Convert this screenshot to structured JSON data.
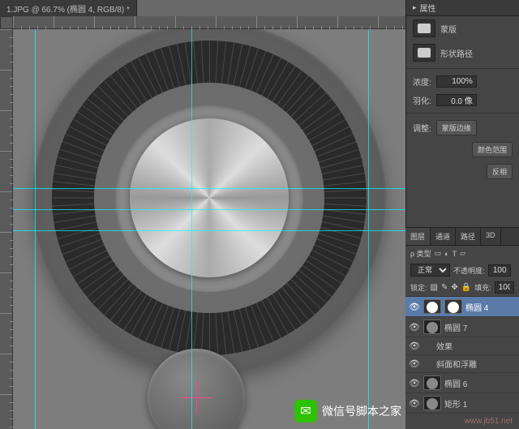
{
  "tab": {
    "title": "1.JPG @ 66.7% (椭圆 4, RGB/8) *"
  },
  "guides": {
    "hx": [
      220,
      27,
      438
    ],
    "vy": [
      196,
      222,
      248
    ]
  },
  "properties": {
    "title": "属性",
    "mask_label": "蒙版",
    "shape_path": "形状路径",
    "density_label": "浓度:",
    "density_value": "100%",
    "feather_label": "羽化:",
    "feather_value": "0.0 像",
    "refine_label": "调整:",
    "btn_mask_edge": "蒙版边缘",
    "btn_color_range": "颜色范围",
    "btn_invert": "反相"
  },
  "layers": {
    "tabs": [
      "图层",
      "通道",
      "路径",
      "3D"
    ],
    "kind_label": "ρ 类型",
    "blend_mode": "正常",
    "opacity_label": "不透明度:",
    "opacity_value": "100",
    "lock_label": "锁定:",
    "fill_label": "填充:",
    "fill_value": "100",
    "items": [
      {
        "name": "椭圆 4",
        "active": true,
        "thumb": "mask",
        "eye": true,
        "indent": 0
      },
      {
        "name": "椭圆 7",
        "active": false,
        "thumb": "circle",
        "eye": true,
        "indent": 0
      },
      {
        "name": "效果",
        "active": false,
        "thumb": "",
        "eye": true,
        "indent": 1
      },
      {
        "name": "斜面和浮雕",
        "active": false,
        "thumb": "",
        "eye": true,
        "indent": 1
      },
      {
        "name": "椭圆 6",
        "active": false,
        "thumb": "circle",
        "eye": true,
        "indent": 0
      },
      {
        "name": "矩形 1",
        "active": false,
        "thumb": "circle",
        "eye": true,
        "indent": 0
      }
    ]
  },
  "watermark": {
    "text": "微信号脚本之家",
    "url": "www.jb51.net"
  },
  "colors": {
    "panel_bg": "#454545",
    "canvas_bg": "#7d7d7d",
    "guide": "#00ffff",
    "selection": "#5a7aa8"
  }
}
